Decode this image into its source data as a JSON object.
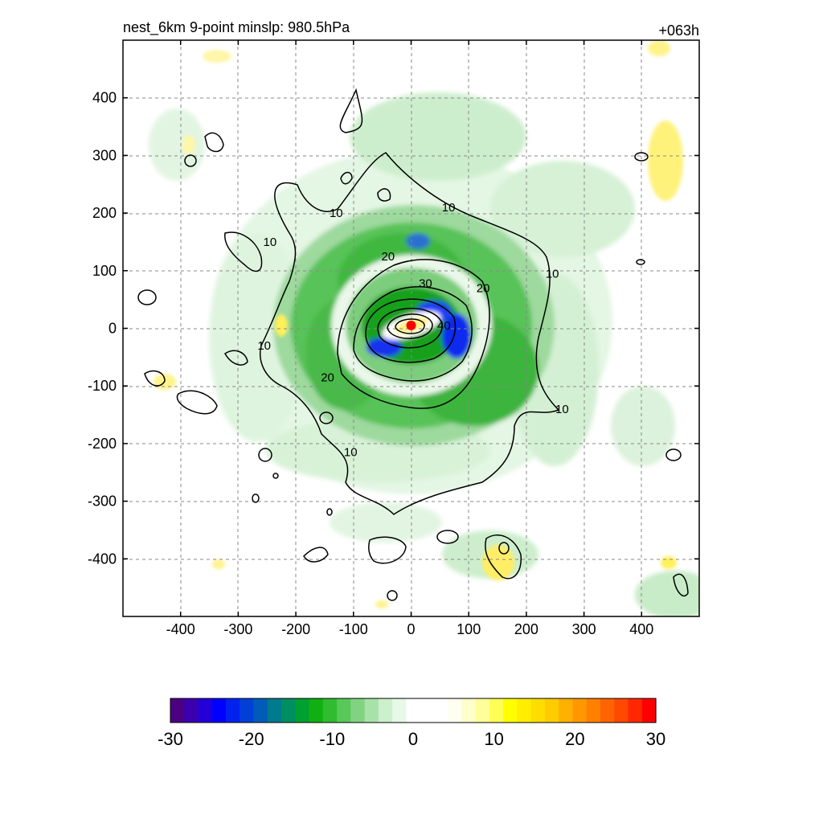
{
  "chart_data": {
    "type": "heatmap",
    "title": "nest_6km  9-point minslp: 980.5hPa",
    "time_label": "+063h",
    "x_ticks": [
      -400,
      -300,
      -200,
      -100,
      0,
      100,
      200,
      300,
      400
    ],
    "y_ticks": [
      400,
      300,
      200,
      100,
      0,
      -100,
      -200,
      -300,
      -400
    ],
    "xlim": [
      -500,
      500
    ],
    "ylim": [
      -500,
      500
    ],
    "grid": true,
    "colorbar": {
      "min": -30,
      "max": 30,
      "tick_values": [
        -30,
        -20,
        -10,
        0,
        10,
        20,
        30
      ],
      "tick_labels": [
        "-30",
        "-20",
        "-10",
        "0",
        "10",
        "20",
        "30"
      ],
      "palette": [
        "#4b0082",
        "#3a00b0",
        "#2400d8",
        "#0000ff",
        "#0022ee",
        "#0040d8",
        "#005cb8",
        "#007a8e",
        "#008f60",
        "#00a030",
        "#10b010",
        "#30bc30",
        "#58c858",
        "#80d480",
        "#a8e2a8",
        "#ccefcc",
        "#e6f8e6",
        "#ffffff",
        "#ffffff",
        "#ffffff",
        "#fffff0",
        "#ffffcc",
        "#ffff99",
        "#ffff55",
        "#ffff00",
        "#ffee00",
        "#ffdd00",
        "#ffcc00",
        "#ffb000",
        "#ff9800",
        "#ff8000",
        "#ff6400",
        "#ff4800",
        "#ff2800",
        "#ff0000"
      ]
    },
    "contour_labels": [
      {
        "text": "10",
        "x": -130,
        "y": 200
      },
      {
        "text": "10",
        "x": 65,
        "y": 210
      },
      {
        "text": "10",
        "x": -245,
        "y": 150
      },
      {
        "text": "10",
        "x": 245,
        "y": 95
      },
      {
        "text": "10",
        "x": -255,
        "y": -30
      },
      {
        "text": "10",
        "x": 262,
        "y": -140
      },
      {
        "text": "10",
        "x": -105,
        "y": -215
      },
      {
        "text": "20",
        "x": -40,
        "y": 125
      },
      {
        "text": "20",
        "x": 125,
        "y": 70
      },
      {
        "text": "20",
        "x": -145,
        "y": -85
      },
      {
        "text": "30",
        "x": 25,
        "y": 78
      },
      {
        "text": "40",
        "x": 57,
        "y": 5
      }
    ],
    "center": {
      "x": 0,
      "y": 5,
      "color": "#ff0000"
    }
  }
}
